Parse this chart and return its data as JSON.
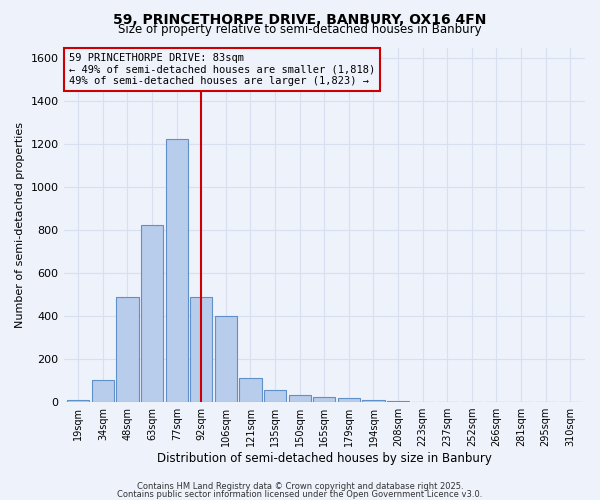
{
  "title_line1": "59, PRINCETHORPE DRIVE, BANBURY, OX16 4FN",
  "title_line2": "Size of property relative to semi-detached houses in Banbury",
  "xlabel": "Distribution of semi-detached houses by size in Banbury",
  "ylabel": "Number of semi-detached properties",
  "categories": [
    "19sqm",
    "34sqm",
    "48sqm",
    "63sqm",
    "77sqm",
    "92sqm",
    "106sqm",
    "121sqm",
    "135sqm",
    "150sqm",
    "165sqm",
    "179sqm",
    "194sqm",
    "208sqm",
    "223sqm",
    "237sqm",
    "252sqm",
    "266sqm",
    "281sqm",
    "295sqm",
    "310sqm"
  ],
  "values": [
    10,
    105,
    490,
    825,
    1225,
    490,
    400,
    110,
    55,
    35,
    25,
    20,
    10,
    3,
    2,
    1,
    1,
    0,
    0,
    0,
    0
  ],
  "bar_color": "#b8cceb",
  "bar_edgecolor": "#6090c8",
  "vline_x_index": 5.0,
  "vline_color": "#cc0000",
  "annotation_line1": "59 PRINCETHORPE DRIVE: 83sqm",
  "annotation_line2": "← 49% of semi-detached houses are smaller (1,818)",
  "annotation_line3": "49% of semi-detached houses are larger (1,823) →",
  "annotation_box_color": "#cc0000",
  "ylim": [
    0,
    1650
  ],
  "yticks": [
    0,
    200,
    400,
    600,
    800,
    1000,
    1200,
    1400,
    1600
  ],
  "footer_line1": "Contains HM Land Registry data © Crown copyright and database right 2025.",
  "footer_line2": "Contains public sector information licensed under the Open Government Licence v3.0.",
  "background_color": "#eef2fb",
  "grid_color": "#d8dff0"
}
